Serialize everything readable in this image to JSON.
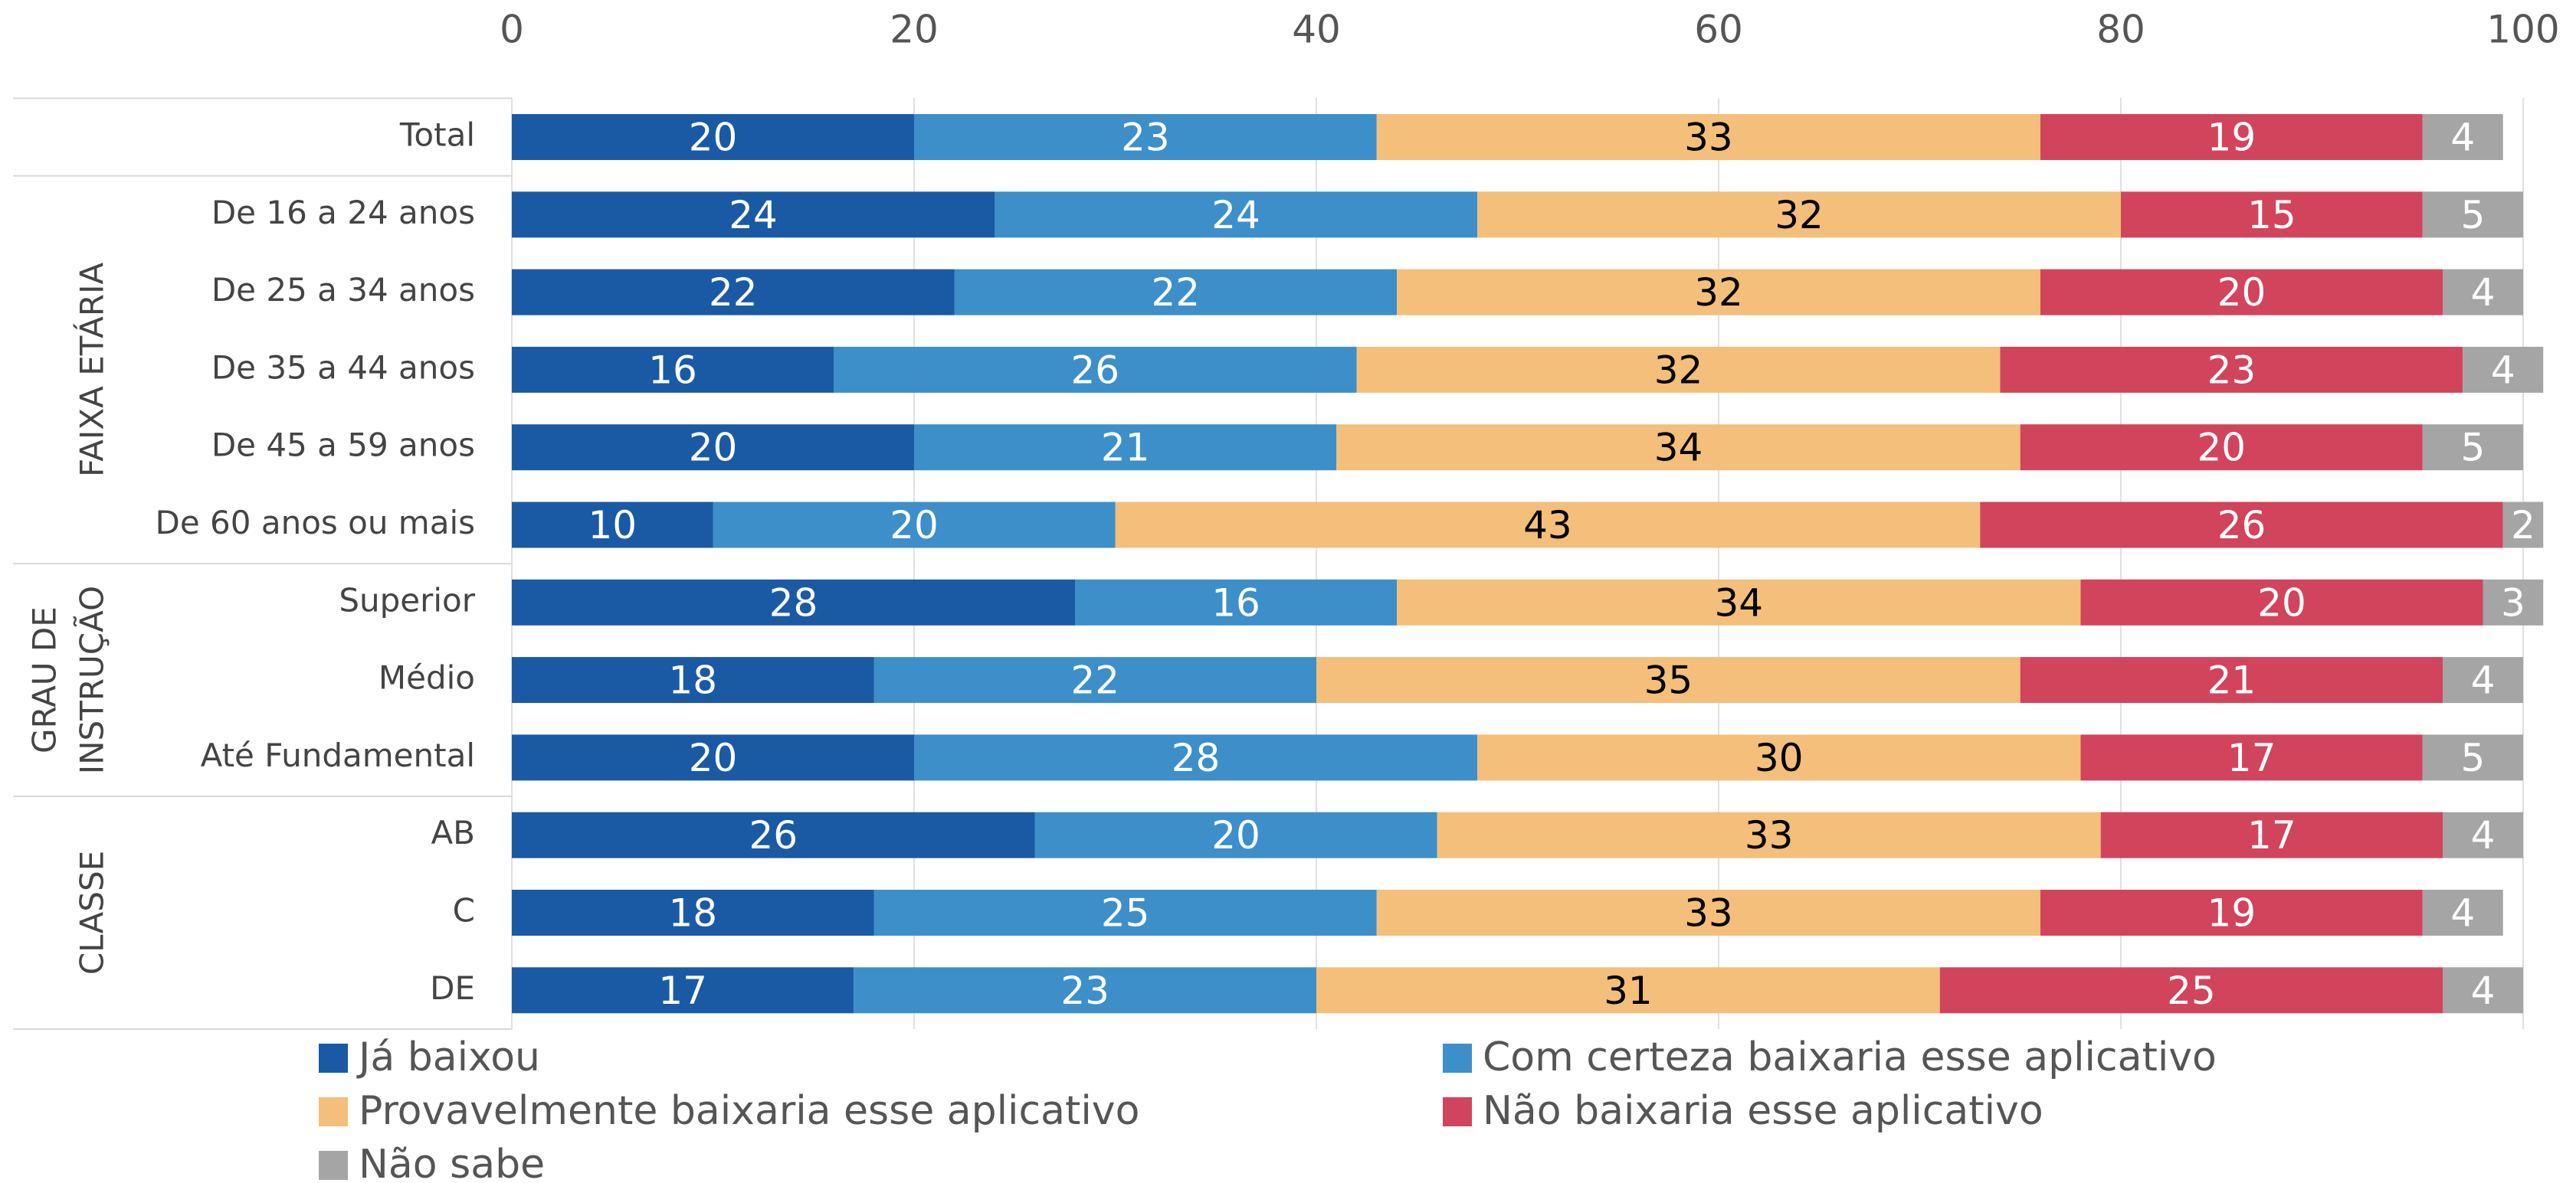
{
  "chart_data": {
    "type": "stacked-bar-horizontal",
    "categories": [
      "Total",
      "De 16 a 24 anos",
      "De 25 a 34 anos",
      "De 35 a 44 anos",
      "De 45 a 59 anos",
      "De 60 anos ou mais",
      "Superior",
      "Médio",
      "Até Fundamental",
      "AB",
      "C",
      "DE"
    ],
    "groups": [
      {
        "label": [
          "FAIXA ETÁRIA"
        ],
        "members": [
          "De 16 a 24 anos",
          "De 25 a 34 anos",
          "De 35 a 44 anos",
          "De 45 a 59 anos",
          "De 60 anos ou mais"
        ]
      },
      {
        "label": [
          "GRAU DE",
          "INSTRUÇÃO"
        ],
        "members": [
          "Superior",
          "Médio",
          "Até Fundamental"
        ]
      },
      {
        "label": [
          "CLASSE"
        ],
        "members": [
          "AB",
          "C",
          "DE"
        ]
      }
    ],
    "series": [
      {
        "name": "Já baixou",
        "color": "#1a5aa5",
        "label_color": "#ffffff",
        "values": [
          20,
          24,
          22,
          16,
          20,
          10,
          28,
          18,
          20,
          26,
          18,
          17
        ]
      },
      {
        "name": "Com certeza baixaria esse aplicativo",
        "color": "#3d8fca",
        "label_color": "#ffffff",
        "values": [
          23,
          24,
          22,
          26,
          21,
          20,
          16,
          22,
          28,
          20,
          25,
          23
        ]
      },
      {
        "name": "Provavelmente baixaria esse aplicativo",
        "color": "#f3bf7b",
        "label_color": "#000000",
        "values": [
          33,
          32,
          32,
          32,
          34,
          43,
          34,
          35,
          30,
          33,
          33,
          31
        ]
      },
      {
        "name": "Não baixaria esse aplicativo",
        "color": "#d2445c",
        "label_color": "#ffffff",
        "values": [
          19,
          15,
          20,
          23,
          20,
          26,
          20,
          21,
          17,
          17,
          19,
          25
        ]
      },
      {
        "name": "Não sabe",
        "color": "#a5a5a5",
        "label_color": "#ffffff",
        "values": [
          4,
          5,
          4,
          4,
          5,
          2,
          3,
          4,
          5,
          4,
          4,
          4
        ]
      }
    ],
    "xlim": [
      0,
      100
    ],
    "xticks": [
      0,
      20,
      40,
      60,
      80,
      100
    ],
    "grid": true
  }
}
